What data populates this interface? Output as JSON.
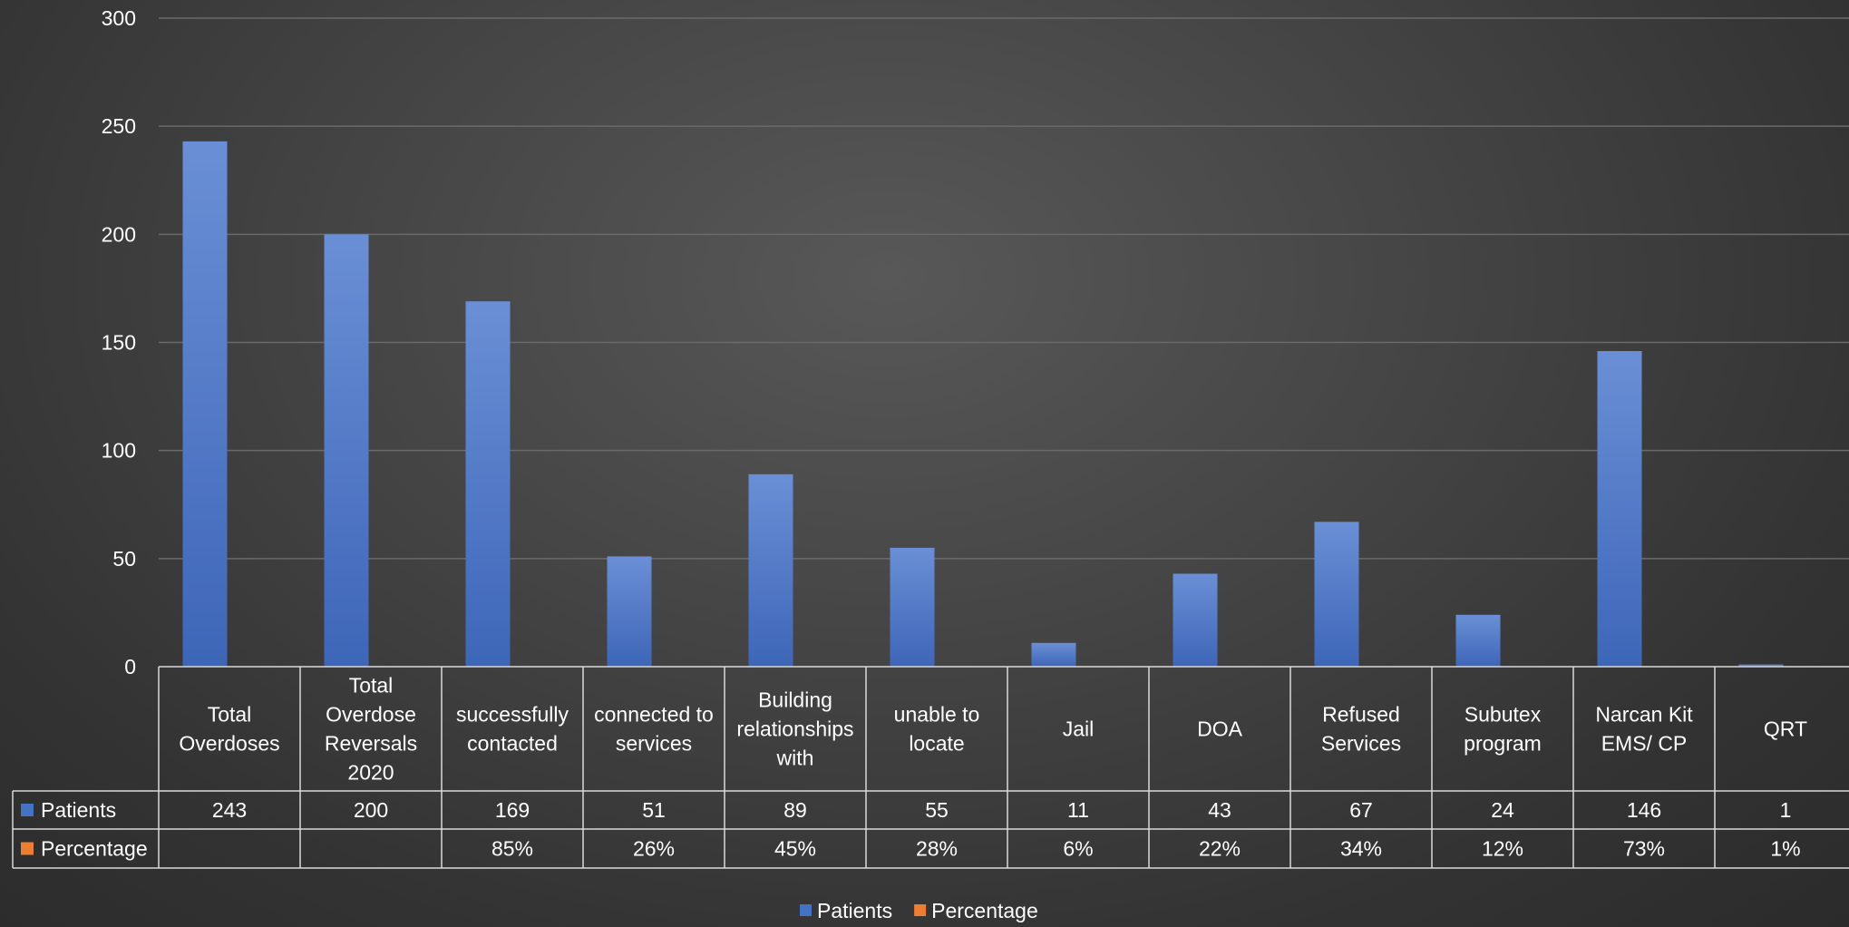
{
  "chart_data": {
    "type": "bar",
    "title": "",
    "xlabel": "",
    "ylabel": "",
    "ylim": [
      0,
      300
    ],
    "yticks": [
      0,
      50,
      100,
      150,
      200,
      250,
      300
    ],
    "grid": true,
    "legend_position": "bottom",
    "categories": [
      [
        "Total",
        "Overdoses"
      ],
      [
        "Total",
        "Overdose",
        "Reversals",
        "2020"
      ],
      [
        "successfully",
        "contacted"
      ],
      [
        "connected to",
        "services"
      ],
      [
        "Building",
        "relationships",
        "with"
      ],
      [
        "unable to",
        "locate"
      ],
      [
        "Jail"
      ],
      [
        "DOA"
      ],
      [
        "Refused",
        "Services"
      ],
      [
        "Subutex",
        "program"
      ],
      [
        "Narcan Kit",
        "EMS/ CP"
      ],
      [
        "QRT"
      ]
    ],
    "series": [
      {
        "name": "Patients",
        "color": "#4472c4",
        "values": [
          243,
          200,
          169,
          51,
          89,
          55,
          11,
          43,
          67,
          24,
          146,
          1
        ],
        "labels": [
          "243",
          "200",
          "169",
          "51",
          "89",
          "55",
          "11",
          "43",
          "67",
          "24",
          "146",
          "1"
        ]
      },
      {
        "name": "Percentage",
        "color": "#ed7d31",
        "values": [
          null,
          null,
          0.85,
          0.26,
          0.45,
          0.28,
          0.06,
          0.22,
          0.34,
          0.12,
          0.73,
          0.01
        ],
        "labels": [
          "",
          "",
          "85%",
          "26%",
          "45%",
          "28%",
          "6%",
          "22%",
          "34%",
          "12%",
          "73%",
          "1%"
        ]
      }
    ]
  }
}
